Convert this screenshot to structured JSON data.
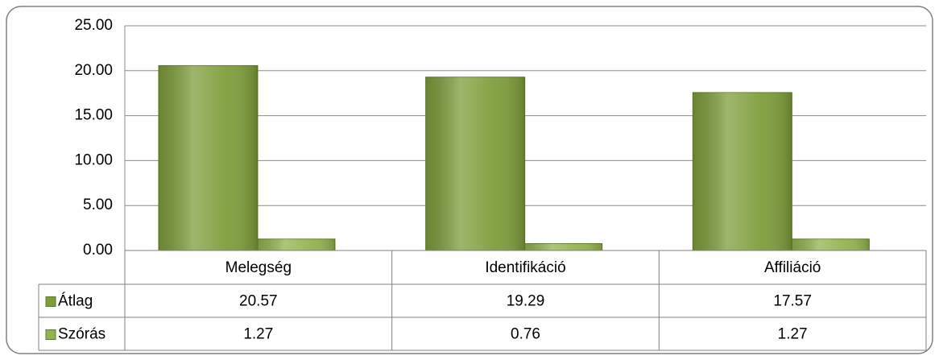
{
  "chart_data": {
    "type": "bar",
    "categories": [
      "Melegség",
      "Identifikáció",
      "Affiliáció"
    ],
    "series": [
      {
        "name": "Átlag",
        "color": "#7e9d3a",
        "values": [
          20.57,
          19.29,
          17.57
        ]
      },
      {
        "name": "Szórás",
        "color": "#93b34c",
        "values": [
          1.27,
          0.76,
          1.27
        ]
      }
    ],
    "ylim": [
      0,
      25
    ],
    "yticks": [
      {
        "value": 0,
        "label": "0.00"
      },
      {
        "value": 5,
        "label": "5.00"
      },
      {
        "value": 10,
        "label": "10.00"
      },
      {
        "value": 15,
        "label": "15.00"
      },
      {
        "value": 20,
        "label": "20.00"
      },
      {
        "value": 25,
        "label": "25.00"
      }
    ],
    "grid": true,
    "data_table": true
  }
}
